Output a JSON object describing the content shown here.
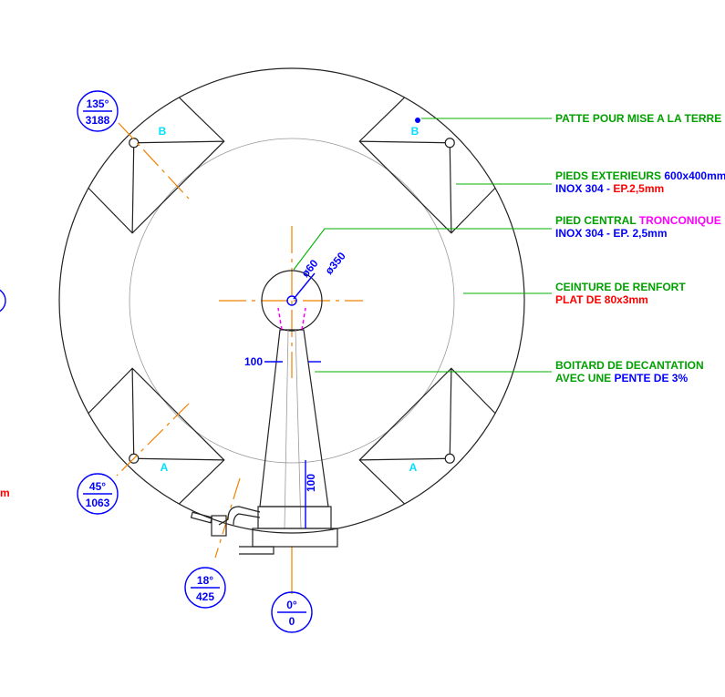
{
  "markers": [
    {
      "angle": "135°",
      "distance": "3188"
    },
    {
      "angle": "45°",
      "distance": "1063"
    },
    {
      "angle": "18°",
      "distance": "425"
    },
    {
      "angle": "0°",
      "distance": "0"
    }
  ],
  "zone_labels": [
    "B",
    "B",
    "A",
    "A"
  ],
  "dimensions": {
    "center_diameter": "ø60",
    "outer_diameter": "ø350",
    "cone_width": "100",
    "cone_height": "100"
  },
  "notes": [
    {
      "lines": [
        [
          {
            "text": "PATTE POUR MISE A LA TERRE",
            "color": "#00a000"
          }
        ]
      ]
    },
    {
      "lines": [
        [
          {
            "text": "PIEDS EXTERIEURS ",
            "color": "#00a000"
          },
          {
            "text": "600x400mm",
            "color": "#0000ff"
          }
        ],
        [
          {
            "text": "INOX 304 - ",
            "color": "#0000ff"
          },
          {
            "text": "EP.2,5mm",
            "color": "#ff0000"
          }
        ]
      ]
    },
    {
      "lines": [
        [
          {
            "text": "PIED CENTRAL ",
            "color": "#00a000"
          },
          {
            "text": "TRONCONIQUE",
            "color": "#ff00ff"
          }
        ],
        [
          {
            "text": "INOX 304 - EP. 2,5mm",
            "color": "#0000ff"
          }
        ]
      ]
    },
    {
      "lines": [
        [
          {
            "text": "CEINTURE DE RENFORT",
            "color": "#00a000"
          }
        ],
        [
          {
            "text": "PLAT DE 80x3mm",
            "color": "#ff0000"
          }
        ]
      ]
    },
    {
      "lines": [
        [
          {
            "text": "BOITARD DE DECANTATION",
            "color": "#00a000"
          }
        ],
        [
          {
            "text": "AVEC UNE ",
            "color": "#00a000"
          },
          {
            "text": "PENTE DE 3%",
            "color": "#0000ff"
          }
        ]
      ]
    }
  ],
  "clipped_text": "m"
}
